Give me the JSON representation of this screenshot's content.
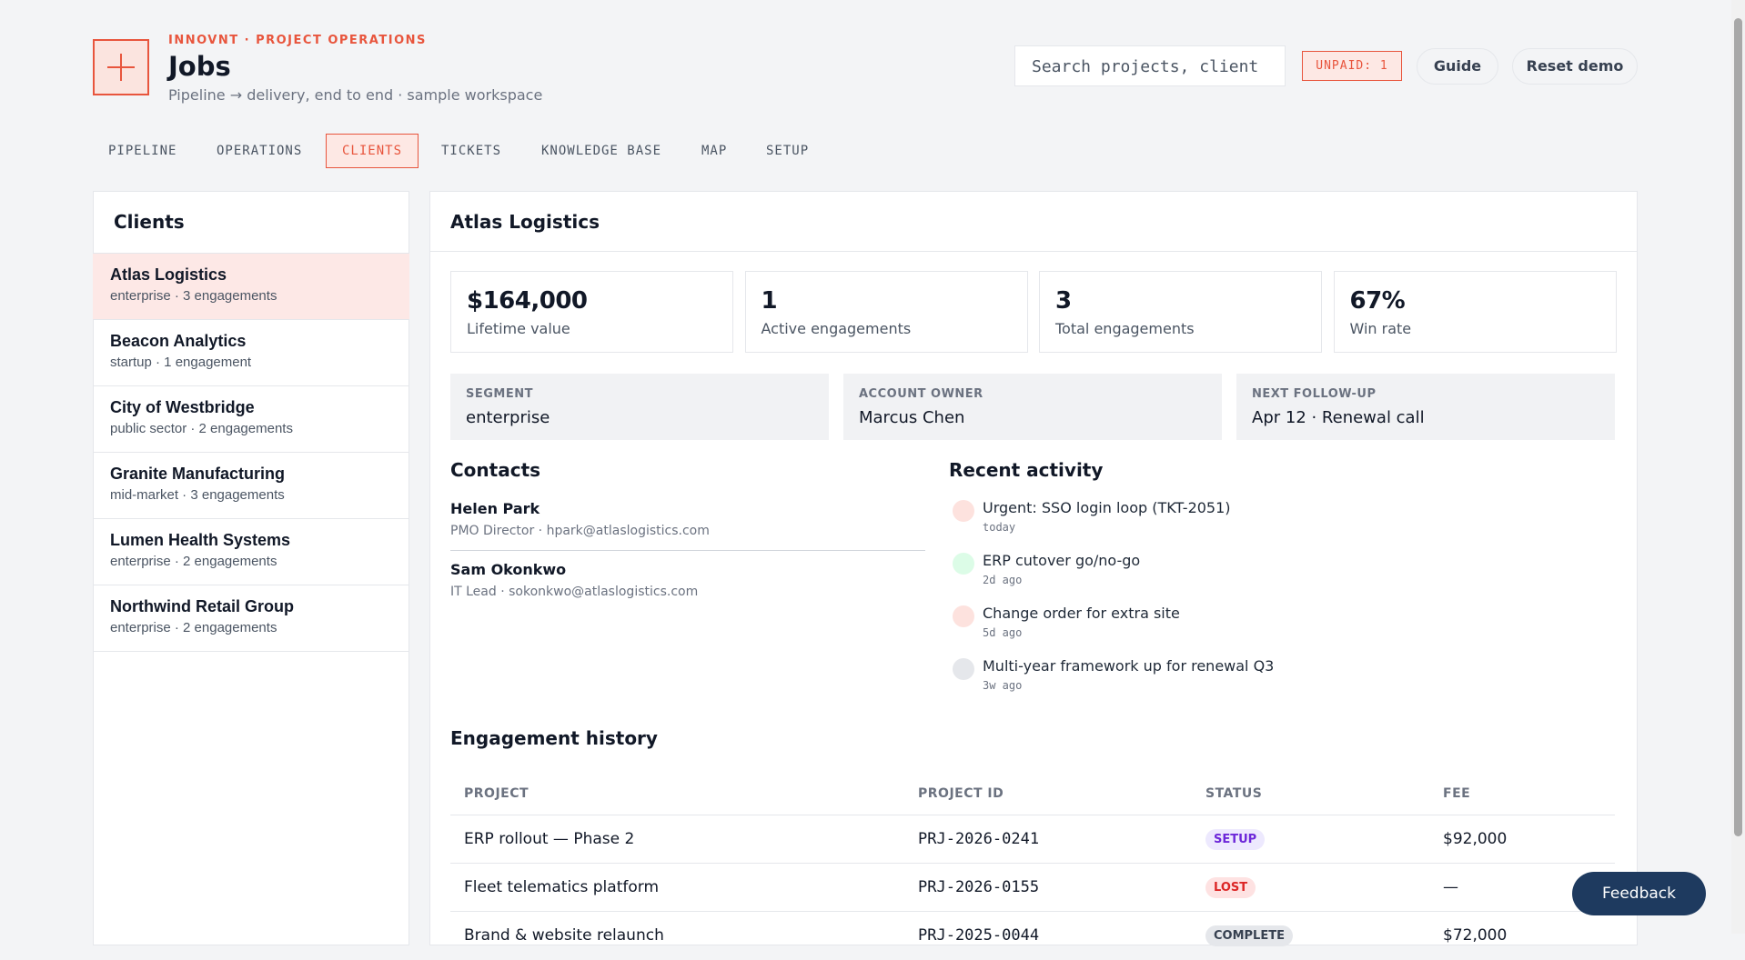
{
  "header": {
    "eyebrow": "INNOVNT · PROJECT OPERATIONS",
    "title": "Jobs",
    "subtitle": "Pipeline → delivery, end to end · sample workspace",
    "search_placeholder": "Search projects, client",
    "badge": "UNPAID: 1",
    "buttons": [
      "Guide",
      "Reset demo"
    ]
  },
  "tabs": [
    "PIPELINE",
    "OPERATIONS",
    "CLIENTS",
    "TICKETS",
    "KNOWLEDGE BASE",
    "MAP",
    "SETUP"
  ],
  "clients": {
    "title": "Clients",
    "items": [
      {
        "name": "Atlas Logistics",
        "meta": "enterprise · 3 engagements"
      },
      {
        "name": "Beacon Analytics",
        "meta": "startup · 1 engagement"
      },
      {
        "name": "City of Westbridge",
        "meta": "public sector · 2 engagements"
      },
      {
        "name": "Granite Manufacturing",
        "meta": "mid-market · 3 engagements"
      },
      {
        "name": "Lumen Health Systems",
        "meta": "enterprise · 2 engagements"
      },
      {
        "name": "Northwind Retail Group",
        "meta": "enterprise · 2 engagements"
      }
    ]
  },
  "detail": {
    "title": "Atlas Logistics",
    "kpis": [
      {
        "value": "$164,000",
        "label": "Lifetime value"
      },
      {
        "value": "1",
        "label": "Active engagements"
      },
      {
        "value": "3",
        "label": "Total engagements"
      },
      {
        "value": "67%",
        "label": "Win rate"
      }
    ],
    "fields": [
      {
        "label": "SEGMENT",
        "value": "enterprise"
      },
      {
        "label": "ACCOUNT OWNER",
        "value": "Marcus Chen"
      },
      {
        "label": "NEXT FOLLOW-UP",
        "value": "Apr 12 · Renewal call"
      }
    ],
    "contacts": {
      "title": "Contacts",
      "items": [
        {
          "name": "Helen Park",
          "detail": "PMO Director · hpark@atlaslogistics.com"
        },
        {
          "name": "Sam Okonkwo",
          "detail": "IT Lead · sokonkwo@atlaslogistics.com"
        }
      ]
    },
    "activity": {
      "title": "Recent activity",
      "items": [
        {
          "text": "Urgent: SSO login loop (TKT-2051)",
          "time": "today"
        },
        {
          "text": "ERP cutover go/no-go",
          "time": "2d ago"
        },
        {
          "text": "Change order for extra site",
          "time": "5d ago"
        },
        {
          "text": "Multi-year framework up for renewal Q3",
          "time": "3w ago"
        }
      ]
    },
    "history": {
      "title": "Engagement history",
      "columns": [
        "PROJECT",
        "PROJECT ID",
        "STATUS",
        "FEE"
      ],
      "rows": [
        [
          "ERP rollout — Phase 2",
          "PRJ-2026-0241",
          "SETUP",
          "$92,000"
        ],
        [
          "Fleet telematics platform",
          "PRJ-2026-0155",
          "LOST",
          "—"
        ],
        [
          "Brand & website relaunch",
          "PRJ-2025-0044",
          "COMPLETE",
          "$72,000"
        ]
      ]
    }
  },
  "feedback": "Feedback"
}
